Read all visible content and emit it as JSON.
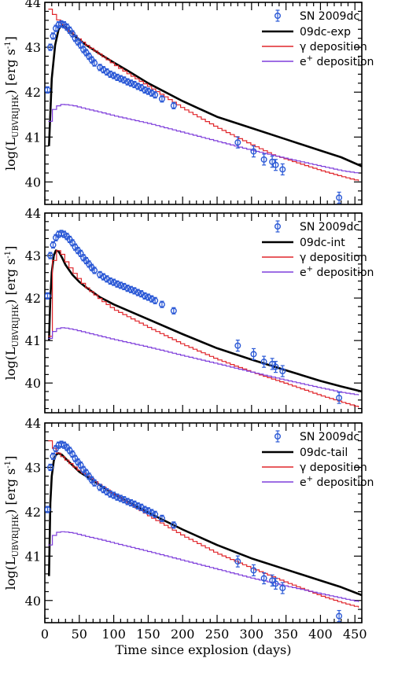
{
  "colors": {
    "model": "#000000",
    "gamma": "#e0262b",
    "positron": "#7f3fdb",
    "observed": "#2b59d6",
    "axis": "#000000"
  },
  "chart_data": [
    {
      "type": "line",
      "panel": "top",
      "xlim": [
        0,
        460
      ],
      "ylim": [
        39.5,
        44
      ],
      "xticks": [
        "0",
        "50",
        "100",
        "150",
        "200",
        "250",
        "300",
        "350",
        "400",
        "450"
      ],
      "yticks": [
        "40",
        "41",
        "42",
        "43",
        "44"
      ],
      "ylabel": {
        "pre": "log(L",
        "sub": "UBVRIJHK",
        "mid": ") [erg s",
        "sup": "-1",
        "post": "]"
      },
      "xlabel": "",
      "legend": [
        "SN 2009dc",
        "09dc-exp",
        "γ deposition",
        "e+ deposition"
      ],
      "series": [
        {
          "name": "09dc-exp",
          "role": "model",
          "x": [
            6,
            10,
            15,
            20,
            25,
            30,
            40,
            50,
            60,
            80,
            100,
            120,
            150,
            200,
            250,
            300,
            350,
            400,
            430,
            460
          ],
          "y": [
            40.8,
            42.3,
            43.05,
            43.4,
            43.5,
            43.45,
            43.3,
            43.17,
            43.05,
            42.85,
            42.66,
            42.48,
            42.2,
            41.8,
            41.45,
            41.2,
            40.95,
            40.7,
            40.55,
            40.35
          ]
        },
        {
          "name": "γ deposition",
          "role": "gamma",
          "x": [
            5,
            10,
            15,
            20,
            30,
            40,
            50,
            60,
            80,
            100,
            120,
            150,
            200,
            250,
            300,
            330,
            350,
            400,
            430,
            460
          ],
          "y": [
            43.85,
            43.75,
            43.65,
            43.55,
            43.4,
            43.27,
            43.15,
            43.03,
            42.82,
            42.6,
            42.4,
            42.12,
            41.63,
            41.2,
            40.82,
            40.6,
            40.5,
            40.25,
            40.12,
            40.0
          ]
        },
        {
          "name": "e+ deposition",
          "role": "positron",
          "x": [
            5,
            10,
            15,
            20,
            25,
            30,
            40,
            50,
            60,
            80,
            100,
            150,
            200,
            250,
            300,
            350,
            400,
            430,
            460
          ],
          "y": [
            41.35,
            41.6,
            41.68,
            41.72,
            41.73,
            41.72,
            41.7,
            41.66,
            41.62,
            41.55,
            41.47,
            41.3,
            41.1,
            40.9,
            40.7,
            40.52,
            40.35,
            40.25,
            40.18
          ]
        },
        {
          "name": "SN 2009dc",
          "role": "observed",
          "x": [
            4,
            8,
            12,
            16,
            20,
            24,
            28,
            32,
            36,
            40,
            44,
            48,
            52,
            56,
            60,
            64,
            68,
            72,
            80,
            85,
            90,
            95,
            100,
            105,
            110,
            115,
            120,
            125,
            130,
            135,
            140,
            145,
            150,
            155,
            160,
            170,
            187,
            280,
            303,
            318,
            330,
            335,
            345,
            427
          ],
          "y": [
            42.05,
            43.0,
            43.25,
            43.42,
            43.5,
            43.52,
            43.5,
            43.45,
            43.38,
            43.3,
            43.2,
            43.12,
            43.05,
            42.95,
            42.88,
            42.8,
            42.72,
            42.65,
            42.55,
            42.5,
            42.45,
            42.4,
            42.37,
            42.33,
            42.3,
            42.27,
            42.23,
            42.2,
            42.17,
            42.13,
            42.1,
            42.05,
            42.02,
            41.98,
            41.94,
            41.85,
            41.7,
            40.88,
            40.68,
            40.5,
            40.45,
            40.38,
            40.28,
            39.65
          ]
        }
      ]
    },
    {
      "type": "line",
      "panel": "middle",
      "xlim": [
        0,
        460
      ],
      "ylim": [
        39.3,
        44
      ],
      "xticks": [
        "0",
        "50",
        "100",
        "150",
        "200",
        "250",
        "300",
        "350",
        "400",
        "450"
      ],
      "yticks": [
        "40",
        "41",
        "42",
        "43",
        "44"
      ],
      "ylabel": {
        "pre": "log(L",
        "sub": "UBVRIJHK",
        "mid": ") [erg s",
        "sup": "-1",
        "post": "]"
      },
      "xlabel": "",
      "legend": [
        "SN 2009dc",
        "09dc-int",
        "γ deposition",
        "e+ deposition"
      ],
      "series": [
        {
          "name": "09dc-int",
          "role": "model",
          "x": [
            6,
            8,
            10,
            13,
            16,
            20,
            25,
            30,
            40,
            50,
            60,
            80,
            100,
            150,
            200,
            250,
            300,
            350,
            400,
            430,
            460
          ],
          "y": [
            41.0,
            42.0,
            42.6,
            43.0,
            43.12,
            43.1,
            42.95,
            42.78,
            42.55,
            42.38,
            42.25,
            42.02,
            41.85,
            41.5,
            41.15,
            40.82,
            40.55,
            40.3,
            40.05,
            39.92,
            39.8
          ]
        },
        {
          "name": "γ deposition",
          "role": "gamma",
          "x": [
            5,
            8,
            10,
            13,
            16,
            20,
            25,
            30,
            40,
            50,
            60,
            80,
            100,
            150,
            200,
            250,
            300,
            350,
            400,
            430,
            460
          ],
          "y": [
            41.1,
            42.3,
            42.8,
            43.05,
            43.12,
            43.1,
            42.98,
            42.82,
            42.6,
            42.4,
            42.22,
            41.95,
            41.72,
            41.3,
            40.9,
            40.55,
            40.25,
            39.98,
            39.7,
            39.55,
            39.4
          ]
        },
        {
          "name": "e+ deposition",
          "role": "positron",
          "x": [
            5,
            10,
            15,
            20,
            25,
            30,
            40,
            50,
            60,
            80,
            100,
            150,
            200,
            250,
            300,
            350,
            400,
            430,
            460
          ],
          "y": [
            41.05,
            41.2,
            41.27,
            41.3,
            41.3,
            41.29,
            41.26,
            41.22,
            41.18,
            41.1,
            41.02,
            40.84,
            40.64,
            40.45,
            40.25,
            40.06,
            39.88,
            39.78,
            39.7
          ]
        },
        {
          "name": "SN 2009dc",
          "role": "observed",
          "x": [
            4,
            8,
            12,
            16,
            20,
            24,
            28,
            32,
            36,
            40,
            44,
            48,
            52,
            56,
            60,
            64,
            68,
            72,
            80,
            85,
            90,
            95,
            100,
            105,
            110,
            115,
            120,
            125,
            130,
            135,
            140,
            145,
            150,
            155,
            160,
            170,
            187,
            280,
            303,
            318,
            330,
            335,
            345,
            427
          ],
          "y": [
            42.05,
            43.0,
            43.25,
            43.42,
            43.5,
            43.52,
            43.5,
            43.45,
            43.38,
            43.3,
            43.2,
            43.12,
            43.05,
            42.95,
            42.88,
            42.8,
            42.72,
            42.65,
            42.55,
            42.5,
            42.45,
            42.4,
            42.37,
            42.33,
            42.3,
            42.27,
            42.23,
            42.2,
            42.17,
            42.13,
            42.1,
            42.05,
            42.02,
            41.98,
            41.94,
            41.85,
            41.7,
            40.88,
            40.68,
            40.5,
            40.45,
            40.38,
            40.28,
            39.65
          ]
        }
      ]
    },
    {
      "type": "line",
      "panel": "bottom",
      "xlim": [
        0,
        460
      ],
      "ylim": [
        39.5,
        44
      ],
      "xticks": [
        "0",
        "50",
        "100",
        "150",
        "200",
        "250",
        "300",
        "350",
        "400",
        "450"
      ],
      "yticks": [
        "40",
        "41",
        "42",
        "43",
        "44"
      ],
      "ylabel": {
        "pre": "log(L",
        "sub": "UBVRIJHK",
        "mid": ") [erg s",
        "sup": "-1",
        "post": "]"
      },
      "xlabel": "Time since explosion (days)",
      "legend": [
        "SN 2009dc",
        "09dc-tail",
        "γ deposition",
        "e+ deposition"
      ],
      "series": [
        {
          "name": "09dc-tail",
          "role": "model",
          "x": [
            6,
            8,
            10,
            13,
            16,
            20,
            25,
            30,
            40,
            50,
            60,
            80,
            100,
            150,
            200,
            250,
            300,
            350,
            400,
            430,
            460
          ],
          "y": [
            40.55,
            42.2,
            42.8,
            43.15,
            43.28,
            43.32,
            43.28,
            43.2,
            43.05,
            42.9,
            42.8,
            42.6,
            42.4,
            41.98,
            41.6,
            41.25,
            40.95,
            40.7,
            40.45,
            40.3,
            40.12
          ]
        },
        {
          "name": "γ deposition",
          "role": "gamma",
          "x": [
            5,
            10,
            15,
            20,
            30,
            40,
            50,
            60,
            80,
            100,
            150,
            200,
            250,
            300,
            350,
            400,
            430,
            460
          ],
          "y": [
            43.6,
            43.45,
            43.35,
            43.28,
            43.15,
            43.02,
            42.9,
            42.8,
            42.58,
            42.38,
            41.9,
            41.45,
            41.05,
            40.72,
            40.4,
            40.1,
            39.95,
            39.82
          ]
        },
        {
          "name": "e+ deposition",
          "role": "positron",
          "x": [
            5,
            10,
            15,
            20,
            25,
            30,
            40,
            50,
            60,
            80,
            100,
            150,
            200,
            250,
            300,
            350,
            400,
            430,
            460
          ],
          "y": [
            41.25,
            41.45,
            41.53,
            41.55,
            41.55,
            41.54,
            41.52,
            41.48,
            41.44,
            41.37,
            41.29,
            41.1,
            40.9,
            40.7,
            40.5,
            40.32,
            40.15,
            40.05,
            39.95
          ]
        },
        {
          "name": "SN 2009dc",
          "role": "observed",
          "x": [
            4,
            8,
            12,
            16,
            20,
            24,
            28,
            32,
            36,
            40,
            44,
            48,
            52,
            56,
            60,
            64,
            68,
            72,
            80,
            85,
            90,
            95,
            100,
            105,
            110,
            115,
            120,
            125,
            130,
            135,
            140,
            145,
            150,
            155,
            160,
            170,
            187,
            280,
            303,
            318,
            330,
            335,
            345,
            427
          ],
          "y": [
            42.05,
            43.0,
            43.25,
            43.42,
            43.5,
            43.52,
            43.5,
            43.45,
            43.38,
            43.3,
            43.2,
            43.12,
            43.05,
            42.95,
            42.88,
            42.8,
            42.72,
            42.65,
            42.55,
            42.5,
            42.45,
            42.4,
            42.37,
            42.33,
            42.3,
            42.27,
            42.23,
            42.2,
            42.17,
            42.13,
            42.1,
            42.05,
            42.02,
            41.98,
            41.94,
            41.85,
            41.7,
            40.88,
            40.68,
            40.5,
            40.45,
            40.38,
            40.28,
            39.65
          ]
        }
      ]
    }
  ]
}
